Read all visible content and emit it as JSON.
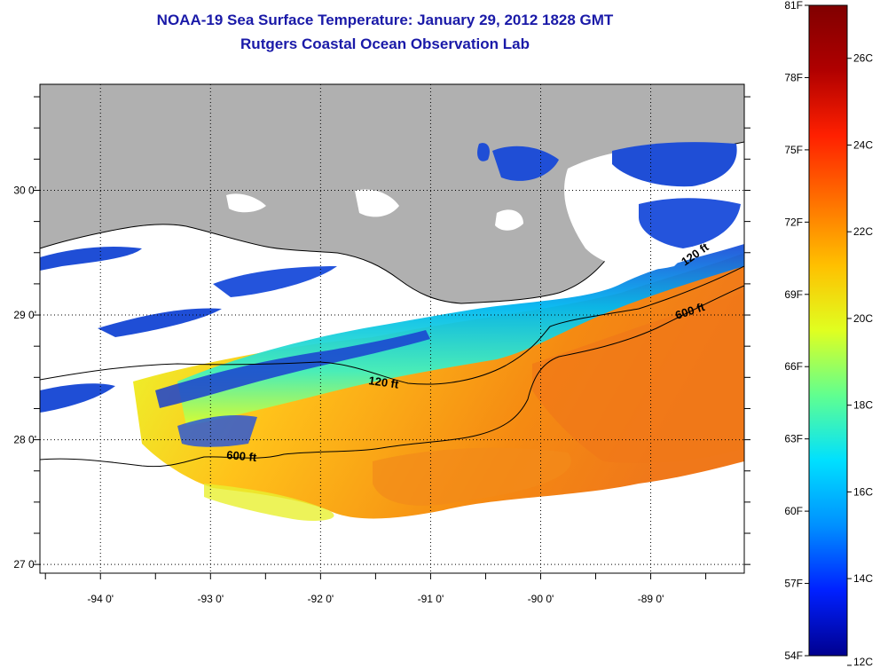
{
  "title": {
    "line1": "NOAA-19 Sea Surface Temperature:  January 29, 2012 1828 GMT",
    "line2": "Rutgers Coastal Ocean Observation Lab"
  },
  "map": {
    "lon_range": [
      -94.55,
      -88.15
    ],
    "lat_range": [
      26.93,
      30.85
    ],
    "lon_ticks": [
      "-94 0'",
      "-93 0'",
      "-92 0'",
      "-91 0'",
      "-90 0'",
      "-89 0'"
    ],
    "lon_values": [
      -94,
      -93,
      -92,
      -91,
      -90,
      -89
    ],
    "lat_ticks": [
      "30 0'",
      "29 0'",
      "28 0'",
      "27 0'"
    ],
    "lat_values": [
      30,
      29,
      28,
      27
    ],
    "grid": "dotted",
    "colors": {
      "land": "#b0b0b0",
      "cloud": "#ffffff",
      "cold": "#1b4fd6",
      "mid": "#00c8e0",
      "warm": "#f4a21c",
      "hot": "#f07a10"
    }
  },
  "contours": [
    {
      "label": "120 ft"
    },
    {
      "label": "600 ft"
    },
    {
      "label": "600 ft"
    },
    {
      "label": "120 ft"
    }
  ],
  "colorbar": {
    "fahrenheit": [
      "81F",
      "78F",
      "75F",
      "72F",
      "69F",
      "66F",
      "63F",
      "60F",
      "57F",
      "54F"
    ],
    "celsius": [
      "26C",
      "24C",
      "22C",
      "20C",
      "18C",
      "16C",
      "14C",
      "12C"
    ],
    "range_f": [
      54,
      81
    ],
    "stops": [
      "#00008f",
      "#0020ff",
      "#0090ff",
      "#00e0ff",
      "#60ff90",
      "#e0ff20",
      "#ffc000",
      "#ff7000",
      "#ff2000",
      "#b00000",
      "#800000"
    ]
  }
}
